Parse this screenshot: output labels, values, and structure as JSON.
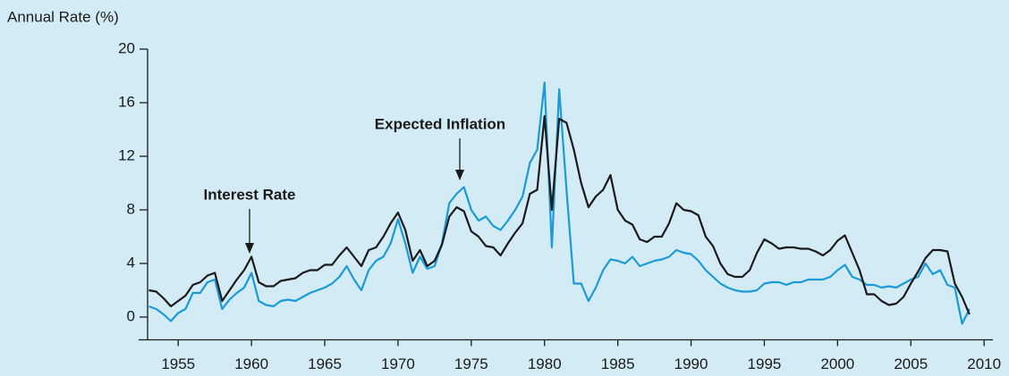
{
  "chart_data": {
    "type": "line",
    "ylabel": "Annual Rate (%)",
    "x": [
      1953,
      1953.5,
      1954,
      1954.5,
      1955,
      1955.5,
      1956,
      1956.5,
      1957,
      1957.5,
      1958,
      1958.5,
      1959,
      1959.5,
      1960,
      1960.5,
      1961,
      1961.5,
      1962,
      1962.5,
      1963,
      1963.5,
      1964,
      1964.5,
      1965,
      1965.5,
      1966,
      1966.5,
      1967,
      1967.5,
      1968,
      1968.5,
      1969,
      1969.5,
      1970,
      1970.5,
      1971,
      1971.5,
      1972,
      1972.5,
      1973,
      1973.5,
      1974,
      1974.5,
      1975,
      1975.5,
      1976,
      1976.5,
      1977,
      1977.5,
      1978,
      1978.5,
      1979,
      1979.5,
      1980,
      1980.5,
      1981,
      1981.5,
      1982,
      1982.5,
      1983,
      1983.5,
      1984,
      1984.5,
      1985,
      1985.5,
      1986,
      1986.5,
      1987,
      1987.5,
      1988,
      1988.5,
      1989,
      1989.5,
      1990,
      1990.5,
      1991,
      1991.5,
      1992,
      1992.5,
      1993,
      1993.5,
      1994,
      1994.5,
      1995,
      1995.5,
      1996,
      1996.5,
      1997,
      1997.5,
      1998,
      1998.5,
      1999,
      1999.5,
      2000,
      2000.5,
      2001,
      2001.5,
      2002,
      2002.5,
      2003,
      2003.5,
      2004,
      2004.5,
      2005,
      2005.5,
      2006,
      2006.5,
      2007,
      2007.5,
      2008,
      2008.5,
      2009
    ],
    "series": [
      {
        "name": "Interest Rate",
        "color": "#1a1a1a",
        "values": [
          2.0,
          1.9,
          1.4,
          0.8,
          1.2,
          1.6,
          2.4,
          2.6,
          3.1,
          3.3,
          1.2,
          2.0,
          2.8,
          3.5,
          4.5,
          2.6,
          2.3,
          2.3,
          2.7,
          2.8,
          2.9,
          3.3,
          3.5,
          3.5,
          3.9,
          3.9,
          4.6,
          5.2,
          4.5,
          3.8,
          5.0,
          5.2,
          6.0,
          7.0,
          7.8,
          6.5,
          4.2,
          5.0,
          3.8,
          4.2,
          5.4,
          7.5,
          8.2,
          7.9,
          6.4,
          6.0,
          5.3,
          5.2,
          4.6,
          5.5,
          6.3,
          7.0,
          9.2,
          9.5,
          15.0,
          8.0,
          14.8,
          14.5,
          12.5,
          10.0,
          8.2,
          9.0,
          9.5,
          10.6,
          8.0,
          7.2,
          6.9,
          5.8,
          5.6,
          6.0,
          6.0,
          7.0,
          8.5,
          8.0,
          7.9,
          7.6,
          6.0,
          5.3,
          4.0,
          3.2,
          3.0,
          3.0,
          3.5,
          4.8,
          5.8,
          5.5,
          5.1,
          5.2,
          5.2,
          5.1,
          5.1,
          4.9,
          4.6,
          5.0,
          5.7,
          6.1,
          4.8,
          3.5,
          1.7,
          1.7,
          1.2,
          0.9,
          1.0,
          1.5,
          2.5,
          3.4,
          4.4,
          5.0,
          5.0,
          4.9,
          2.5,
          1.5,
          0.2
        ]
      },
      {
        "name": "Expected Inflation",
        "color": "#1a9ad6",
        "values": [
          0.8,
          0.6,
          0.2,
          -0.3,
          0.3,
          0.6,
          1.8,
          1.8,
          2.6,
          2.8,
          0.6,
          1.3,
          1.8,
          2.2,
          3.3,
          1.2,
          0.9,
          0.8,
          1.2,
          1.3,
          1.2,
          1.5,
          1.8,
          2.0,
          2.2,
          2.5,
          3.0,
          3.8,
          2.8,
          2.0,
          3.5,
          4.2,
          4.5,
          5.5,
          7.3,
          5.5,
          3.3,
          4.5,
          3.6,
          3.8,
          5.5,
          8.5,
          9.2,
          9.7,
          8.0,
          7.2,
          7.5,
          6.8,
          6.5,
          7.2,
          8.0,
          9.0,
          11.5,
          12.5,
          17.5,
          5.2,
          17.0,
          9.5,
          2.5,
          2.5,
          1.2,
          2.2,
          3.5,
          4.3,
          4.2,
          4.0,
          4.5,
          3.8,
          4.0,
          4.2,
          4.3,
          4.5,
          5.0,
          4.8,
          4.7,
          4.2,
          3.5,
          3.0,
          2.5,
          2.2,
          2.0,
          1.9,
          1.9,
          2.0,
          2.5,
          2.6,
          2.6,
          2.4,
          2.6,
          2.6,
          2.8,
          2.8,
          2.8,
          3.0,
          3.5,
          3.9,
          3.0,
          2.8,
          2.4,
          2.4,
          2.2,
          2.3,
          2.2,
          2.5,
          2.8,
          3.0,
          4.0,
          3.2,
          3.5,
          2.4,
          2.2,
          -0.5,
          0.6
        ]
      }
    ],
    "xlim": [
      1952.3,
      2010.6
    ],
    "xticks": [
      1955,
      1960,
      1965,
      1970,
      1975,
      1980,
      1985,
      1990,
      1995,
      2000,
      2005,
      2010
    ],
    "ylim": [
      -1.7,
      20
    ],
    "yticks": [
      0,
      4,
      8,
      12,
      16,
      20
    ]
  }
}
